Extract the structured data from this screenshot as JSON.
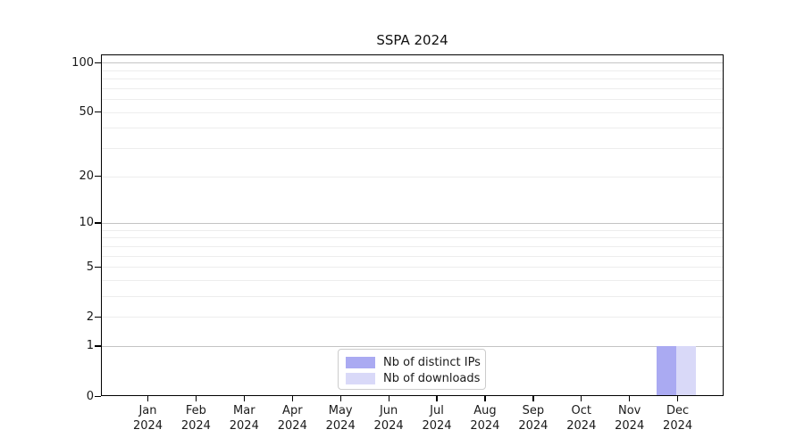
{
  "chart_data": {
    "type": "bar",
    "title": "SSPA 2024",
    "x_tick_months": [
      "Jan",
      "Feb",
      "Mar",
      "Apr",
      "May",
      "Jun",
      "Jul",
      "Aug",
      "Sep",
      "Oct",
      "Nov",
      "Dec"
    ],
    "x_tick_year": "2024",
    "categories": [
      "Jan 2024",
      "Feb 2024",
      "Mar 2024",
      "Apr 2024",
      "May 2024",
      "Jun 2024",
      "Jul 2024",
      "Aug 2024",
      "Sep 2024",
      "Oct 2024",
      "Nov 2024",
      "Dec 2024"
    ],
    "series": [
      {
        "name": "Nb of distinct IPs",
        "color": "#aaaaf2",
        "values": [
          0,
          0,
          0,
          0,
          0,
          0,
          0,
          0,
          0,
          0,
          0,
          1
        ]
      },
      {
        "name": "Nb of downloads",
        "color": "#d9d9f8",
        "values": [
          0,
          0,
          0,
          0,
          0,
          0,
          0,
          0,
          0,
          0,
          0,
          1
        ]
      }
    ],
    "y_axis": {
      "scale": "log10(value+1)",
      "tick_values": [
        0,
        1,
        2,
        5,
        10,
        20,
        50,
        100
      ],
      "major_gridlines": [
        1,
        10,
        100
      ],
      "minor_gridlines": [
        2,
        3,
        4,
        5,
        6,
        7,
        8,
        9,
        20,
        30,
        40,
        50,
        60,
        70,
        80,
        90
      ],
      "range_top": 112
    },
    "grid": true,
    "legend_position": "lower center inside plot",
    "colors": {
      "distinct_ips_bar": "#aaaaf2",
      "downloads_bar": "#d9d9f8",
      "major_grid": "#c4c4c4",
      "minor_grid": "#ededed",
      "spine": "#000000"
    }
  }
}
